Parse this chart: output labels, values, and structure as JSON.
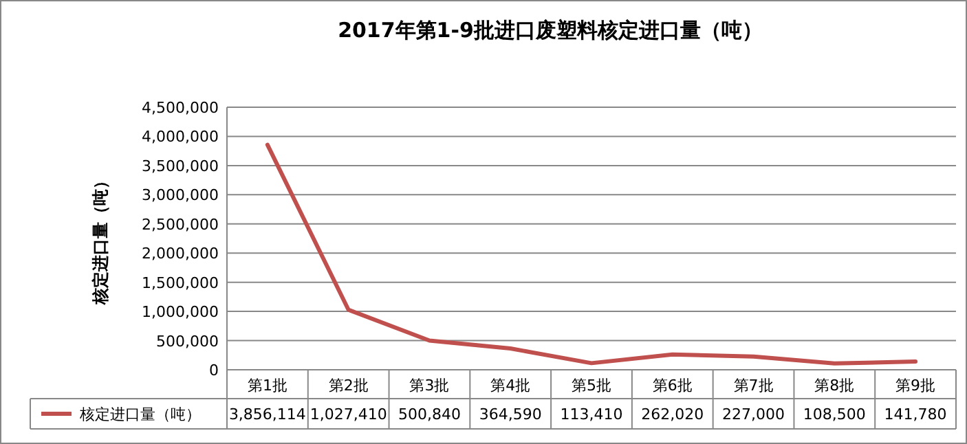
{
  "chart_data": {
    "type": "line",
    "title": "2017年第1-9批进口废塑料核定进口量（吨）",
    "ylabel": "核定进口量（吨）",
    "categories": [
      "第1批",
      "第2批",
      "第3批",
      "第4批",
      "第5批",
      "第6批",
      "第7批",
      "第8批",
      "第9批"
    ],
    "series": [
      {
        "name": "核定进口量（吨）",
        "color": "#c0504d",
        "values": [
          3856114,
          1027410,
          500840,
          364590,
          113410,
          262020,
          227000,
          108500,
          141780
        ],
        "value_labels": [
          "3,856,114",
          "1,027,410",
          "500,840",
          "364,590",
          "113,410",
          "262,020",
          "227,000",
          "108,500",
          "141,780"
        ]
      }
    ],
    "ylim": [
      0,
      4500000
    ],
    "yticks": [
      {
        "value": 0,
        "label": "0"
      },
      {
        "value": 500000,
        "label": "500,000"
      },
      {
        "value": 1000000,
        "label": "1,000,000"
      },
      {
        "value": 1500000,
        "label": "1,500,000"
      },
      {
        "value": 2000000,
        "label": "2,000,000"
      },
      {
        "value": 2500000,
        "label": "2,500,000"
      },
      {
        "value": 3000000,
        "label": "3,000,000"
      },
      {
        "value": 3500000,
        "label": "3,500,000"
      },
      {
        "value": 4000000,
        "label": "4,000,000"
      },
      {
        "value": 4500000,
        "label": "4,500,000"
      }
    ],
    "grid": "y",
    "legend": "bottom",
    "line_style": "solid",
    "marker": "none"
  }
}
